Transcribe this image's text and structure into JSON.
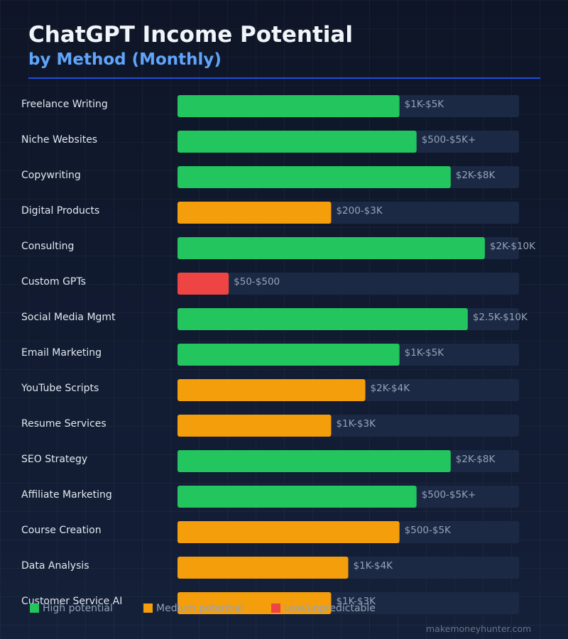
{
  "header": {
    "title": "ChatGPT Income Potential",
    "subtitle": "by Method (Monthly)"
  },
  "colors": {
    "high": "#22c55e",
    "medium": "#f59e0b",
    "low": "#ef4444",
    "track": "#1c2944",
    "accent": "#60a5fa"
  },
  "legend": [
    {
      "key": "high",
      "label": "High potential"
    },
    {
      "key": "medium",
      "label": "Medium potential"
    },
    {
      "key": "low",
      "label": "Low/unpredictable"
    }
  ],
  "footer": {
    "source": "makemoneyhunter.com"
  },
  "chart_data": {
    "type": "bar",
    "orientation": "horizontal",
    "title": "ChatGPT Income Potential",
    "subtitle": "by Method (Monthly)",
    "grid": false,
    "legend_position": "bottom-left",
    "xlim": [
      0,
      100
    ],
    "categories": [
      "Freelance Writing",
      "Niche Websites",
      "Copywriting",
      "Digital Products",
      "Consulting",
      "Custom GPTs",
      "Social Media Mgmt",
      "Email Marketing",
      "YouTube Scripts",
      "Resume Services",
      "SEO Strategy",
      "Affiliate Marketing",
      "Course Creation",
      "Data Analysis",
      "Customer Service AI"
    ],
    "values": [
      65,
      70,
      80,
      45,
      90,
      15,
      85,
      65,
      55,
      45,
      80,
      70,
      65,
      50,
      45
    ],
    "value_labels": [
      "$1K-$5K",
      "$500-$5K+",
      "$2K-$8K",
      "$200-$3K",
      "$2K-$10K",
      "$50-$500",
      "$2.5K-$10K",
      "$1K-$5K",
      "$2K-$4K",
      "$1K-$3K",
      "$2K-$8K",
      "$500-$5K+",
      "$500-$5K",
      "$1K-$4K",
      "$1K-$3K"
    ],
    "tiers": [
      "high",
      "high",
      "high",
      "medium",
      "high",
      "low",
      "high",
      "high",
      "medium",
      "medium",
      "high",
      "high",
      "medium",
      "medium",
      "medium"
    ]
  }
}
